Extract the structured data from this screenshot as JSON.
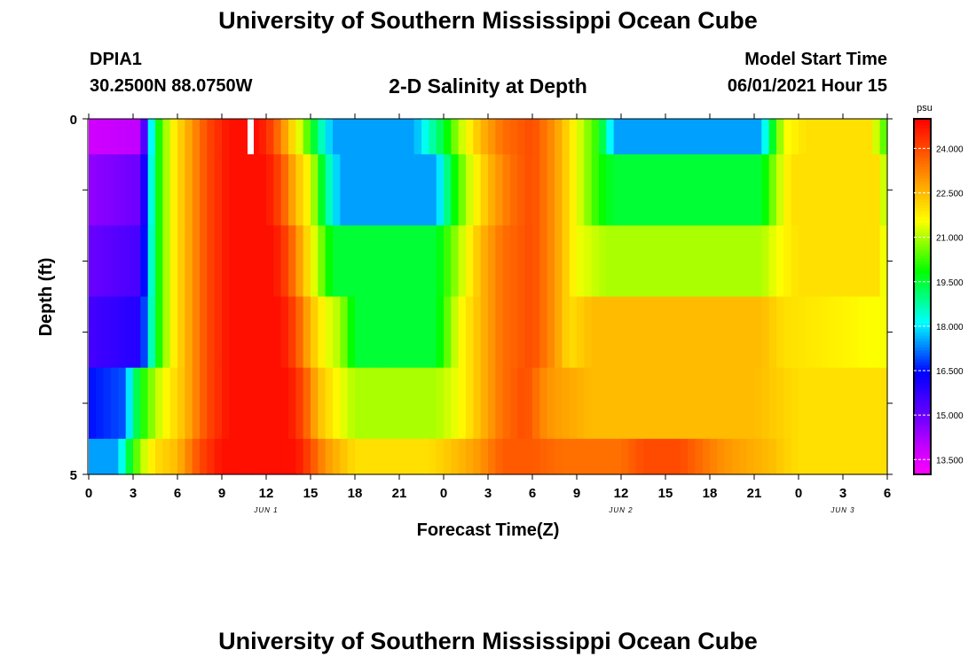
{
  "header": {
    "title": "University of Southern Mississippi Ocean Cube",
    "station": "DPIA1",
    "coords": "30.2500N  88.0750W",
    "plot_title": "2-D Salinity at Depth",
    "start_label": "Model Start Time",
    "start_value": "06/01/2021 Hour 15"
  },
  "footer": {
    "title": "University of Southern Mississippi Ocean Cube"
  },
  "chart_data": {
    "type": "heatmap",
    "title": "2-D Salinity at Depth",
    "xlabel": "Forecast Time(Z)",
    "ylabel": "Depth (ft)",
    "x_tick_labels": [
      "0",
      "3",
      "6",
      "9",
      "12",
      "15",
      "18",
      "21",
      "0",
      "3",
      "6",
      "9",
      "12",
      "15",
      "18",
      "21",
      "0",
      "3",
      "6"
    ],
    "date_labels": [
      {
        "label": "JUN 1",
        "at_hour": 12
      },
      {
        "label": "JUN 2",
        "at_hour": 36
      },
      {
        "label": "JUN 3",
        "at_hour": 51
      }
    ],
    "xlim_hours": [
      0,
      54
    ],
    "y_tick_labels": [
      "0",
      "5"
    ],
    "ylim": [
      0,
      5
    ],
    "colorbar": {
      "unit": "psu",
      "min": 13.0,
      "max": 25.0,
      "tick_labels": [
        "13.500",
        "15.000",
        "16.500",
        "18.000",
        "19.500",
        "21.000",
        "22.500",
        "24.000"
      ]
    },
    "layer_depths": [
      "0-0.5 ft",
      "0.5-1.5 ft",
      "1.5-2.5 ft",
      "2.5-3.5 ft",
      "3.5-4.5 ft",
      "4.5-5 ft"
    ],
    "layers": [
      {
        "depth": "0-0.5 ft",
        "keyframes": [
          [
            0,
            13.8
          ],
          [
            3.5,
            14.0
          ],
          [
            4.5,
            19.5
          ],
          [
            5.5,
            21.5
          ],
          [
            6.5,
            22.5
          ],
          [
            8,
            24.0
          ],
          [
            9.5,
            24.8
          ],
          [
            11.5,
            24.8
          ],
          [
            12.5,
            24.0
          ],
          [
            13.5,
            22.5
          ],
          [
            14.5,
            21.0
          ],
          [
            15.5,
            19.0
          ],
          [
            16.5,
            17.5
          ],
          [
            22,
            17.5
          ],
          [
            24,
            19.5
          ],
          [
            25,
            21.0
          ],
          [
            26.5,
            22.5
          ],
          [
            28,
            23.5
          ],
          [
            30,
            24.0
          ],
          [
            31.5,
            23.0
          ],
          [
            33,
            21.5
          ],
          [
            34.5,
            20.0
          ],
          [
            35.5,
            17.5
          ],
          [
            45.5,
            17.5
          ],
          [
            46,
            19.0
          ],
          [
            47,
            21.5
          ],
          [
            48.5,
            22.0
          ],
          [
            53,
            22.0
          ],
          [
            53.5,
            20.5
          ],
          [
            54,
            20.5
          ]
        ]
      },
      {
        "depth": "0.5-1.5 ft",
        "keyframes": [
          [
            0,
            14.5
          ],
          [
            3.5,
            15.0
          ],
          [
            4.5,
            19.5
          ],
          [
            5.5,
            21.5
          ],
          [
            6.5,
            22.5
          ],
          [
            8,
            24.0
          ],
          [
            9.5,
            24.8
          ],
          [
            12,
            24.8
          ],
          [
            13,
            24.0
          ],
          [
            14,
            22.5
          ],
          [
            15,
            21.5
          ],
          [
            16,
            19.0
          ],
          [
            17,
            17.5
          ],
          [
            23.5,
            17.5
          ],
          [
            24.5,
            19.5
          ],
          [
            25.5,
            21.0
          ],
          [
            27,
            22.5
          ],
          [
            28.5,
            23.5
          ],
          [
            30,
            24.0
          ],
          [
            31.5,
            23.0
          ],
          [
            33,
            21.5
          ],
          [
            34.5,
            20.0
          ],
          [
            35.5,
            19.5
          ],
          [
            45.5,
            19.5
          ],
          [
            46.5,
            21.0
          ],
          [
            47.5,
            22.0
          ],
          [
            53.5,
            22.0
          ],
          [
            54,
            20.5
          ]
        ]
      },
      {
        "depth": "1.5-2.5 ft",
        "keyframes": [
          [
            0,
            15.0
          ],
          [
            3.5,
            15.5
          ],
          [
            4.5,
            19.5
          ],
          [
            5.5,
            21.5
          ],
          [
            6.5,
            22.5
          ],
          [
            8,
            24.0
          ],
          [
            9.5,
            24.8
          ],
          [
            12.5,
            24.8
          ],
          [
            13.5,
            24.0
          ],
          [
            14.5,
            22.5
          ],
          [
            15.5,
            21.0
          ],
          [
            16.5,
            19.5
          ],
          [
            17.5,
            19.5
          ],
          [
            23.5,
            19.5
          ],
          [
            25,
            21.0
          ],
          [
            26.5,
            22.5
          ],
          [
            28,
            23.5
          ],
          [
            30,
            24.0
          ],
          [
            31.5,
            23.0
          ],
          [
            33,
            21.5
          ],
          [
            35,
            21.0
          ],
          [
            45.5,
            21.0
          ],
          [
            46.5,
            21.5
          ],
          [
            48,
            22.0
          ],
          [
            53.5,
            22.0
          ],
          [
            54,
            21.0
          ]
        ]
      },
      {
        "depth": "2.5-3.5 ft",
        "keyframes": [
          [
            0,
            15.5
          ],
          [
            3.5,
            16.0
          ],
          [
            4.5,
            19.5
          ],
          [
            5.5,
            21.5
          ],
          [
            6.5,
            22.5
          ],
          [
            8,
            24.0
          ],
          [
            9.5,
            24.8
          ],
          [
            13,
            24.8
          ],
          [
            14,
            24.0
          ],
          [
            15,
            22.5
          ],
          [
            16,
            21.5
          ],
          [
            17,
            21.0
          ],
          [
            18,
            19.5
          ],
          [
            23.5,
            19.5
          ],
          [
            25,
            21.5
          ],
          [
            26.5,
            22.5
          ],
          [
            28,
            23.5
          ],
          [
            30,
            24.0
          ],
          [
            31.5,
            23.0
          ],
          [
            32.5,
            22.0
          ],
          [
            34,
            22.5
          ],
          [
            45.5,
            22.5
          ],
          [
            47,
            22.0
          ],
          [
            54,
            21.5
          ]
        ]
      },
      {
        "depth": "3.5-4.5 ft",
        "keyframes": [
          [
            0,
            16.5
          ],
          [
            2.5,
            17.0
          ],
          [
            3,
            19.0
          ],
          [
            4,
            20.5
          ],
          [
            5,
            21.5
          ],
          [
            6.5,
            22.5
          ],
          [
            8,
            24.0
          ],
          [
            9.5,
            24.8
          ],
          [
            13.5,
            24.8
          ],
          [
            14.5,
            24.0
          ],
          [
            15.5,
            22.5
          ],
          [
            17,
            21.5
          ],
          [
            18,
            21.0
          ],
          [
            23.5,
            21.0
          ],
          [
            25,
            21.5
          ],
          [
            26.5,
            22.5
          ],
          [
            28,
            23.5
          ],
          [
            29.5,
            24.0
          ],
          [
            31,
            23.0
          ],
          [
            34,
            22.5
          ],
          [
            45,
            22.5
          ],
          [
            48,
            22.0
          ],
          [
            54,
            22.0
          ]
        ]
      },
      {
        "depth": "4.5-5 ft",
        "keyframes": [
          [
            0,
            17.5
          ],
          [
            2,
            17.5
          ],
          [
            2.5,
            19.0
          ],
          [
            3.5,
            21.0
          ],
          [
            4.5,
            22.0
          ],
          [
            6,
            22.5
          ],
          [
            7.5,
            24.0
          ],
          [
            9,
            24.8
          ],
          [
            14,
            24.8
          ],
          [
            15,
            24.0
          ],
          [
            16,
            23.0
          ],
          [
            17,
            22.5
          ],
          [
            18,
            22.0
          ],
          [
            23,
            22.0
          ],
          [
            25,
            22.5
          ],
          [
            26.5,
            23.0
          ],
          [
            28,
            23.8
          ],
          [
            30,
            23.8
          ],
          [
            32,
            23.5
          ],
          [
            36,
            23.5
          ],
          [
            37.5,
            24.0
          ],
          [
            40,
            24.0
          ],
          [
            41.5,
            23.5
          ],
          [
            43,
            23.0
          ],
          [
            46,
            22.5
          ],
          [
            48,
            22.0
          ],
          [
            54,
            22.0
          ]
        ]
      }
    ],
    "colors": {
      "scale": [
        "#ff00ff",
        "#cc00ff",
        "#8000ff",
        "#4000ff",
        "#0000ff",
        "#0080ff",
        "#00ffff",
        "#00ff80",
        "#00ff00",
        "#80ff00",
        "#ffff00",
        "#ffc000",
        "#ff8000",
        "#ff4000",
        "#ff0000"
      ]
    }
  }
}
